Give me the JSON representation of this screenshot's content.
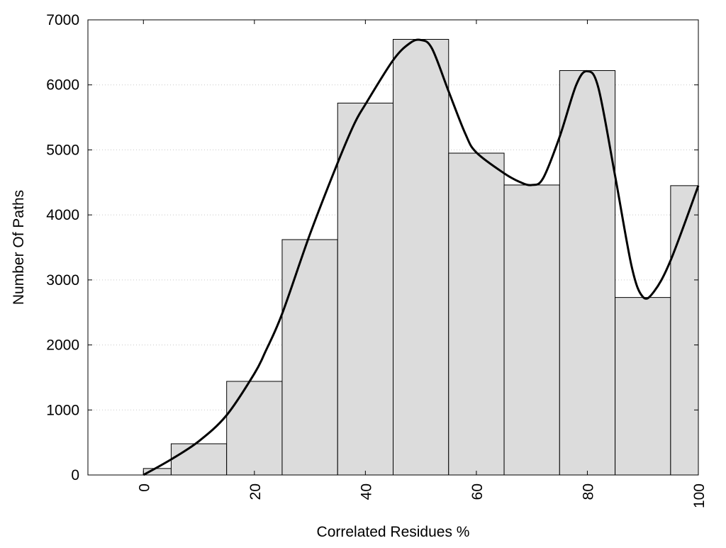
{
  "chart_data": {
    "type": "bar",
    "xlabel": "Correlated Residues %",
    "ylabel": "Number Of Paths",
    "xlim": [
      -10,
      100
    ],
    "ylim": [
      0,
      7000
    ],
    "x_ticks": [
      "0",
      "20",
      "40",
      "60",
      "80",
      "100"
    ],
    "y_ticks": [
      "0",
      "1000",
      "2000",
      "3000",
      "4000",
      "5000",
      "6000",
      "7000"
    ],
    "grid": "horizontal dotted",
    "legend": "none",
    "bins": [
      {
        "x_start": 0,
        "x_end": 5,
        "value": 100
      },
      {
        "x_start": 5,
        "x_end": 15,
        "value": 480
      },
      {
        "x_start": 15,
        "x_end": 25,
        "value": 1440
      },
      {
        "x_start": 25,
        "x_end": 35,
        "value": 3620
      },
      {
        "x_start": 35,
        "x_end": 45,
        "value": 5720
      },
      {
        "x_start": 45,
        "x_end": 55,
        "value": 6700
      },
      {
        "x_start": 55,
        "x_end": 65,
        "value": 4950
      },
      {
        "x_start": 65,
        "x_end": 75,
        "value": 4460
      },
      {
        "x_start": 75,
        "x_end": 85,
        "value": 6220
      },
      {
        "x_start": 85,
        "x_end": 95,
        "value": 2730
      },
      {
        "x_start": 95,
        "x_end": 100,
        "value": 4450
      }
    ],
    "curve": {
      "x": [
        0,
        5,
        10,
        15,
        20,
        22,
        25,
        30,
        35,
        38,
        40,
        45,
        48,
        50,
        52,
        55,
        58,
        60,
        65,
        68,
        70,
        72,
        75,
        78,
        80,
        82,
        85,
        88,
        90,
        92,
        95,
        100
      ],
      "y": [
        0,
        240,
        520,
        920,
        1560,
        1900,
        2480,
        3700,
        4800,
        5400,
        5700,
        6380,
        6640,
        6690,
        6560,
        5900,
        5250,
        4960,
        4640,
        4500,
        4460,
        4560,
        5200,
        6000,
        6210,
        5950,
        4600,
        3200,
        2740,
        2820,
        3300,
        4450
      ]
    },
    "colors": {
      "bar_fill": "#dcdcdc",
      "bar_stroke": "#000000",
      "curve": "#000000",
      "grid": "#c8c8c8"
    }
  }
}
